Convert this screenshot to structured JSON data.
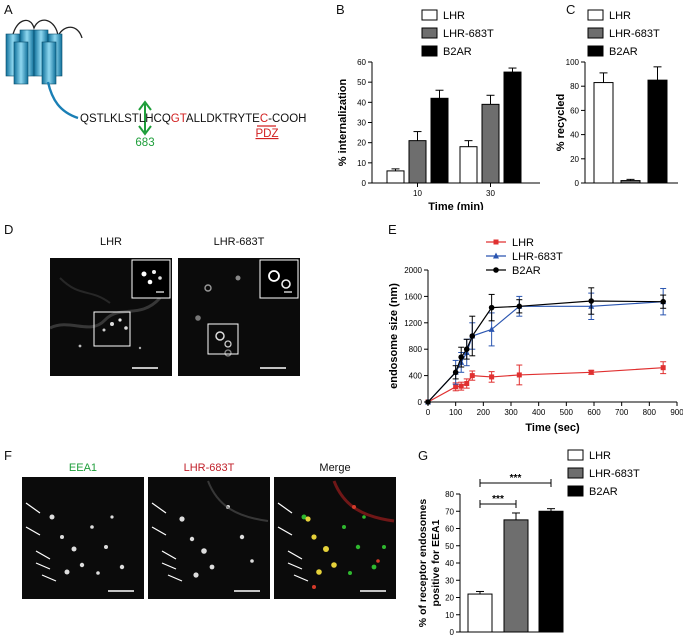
{
  "panels": {
    "A": {
      "letter": "A",
      "sequence": [
        {
          "text": "QSTLKLST",
          "color": "#111111"
        },
        {
          "text": "L",
          "color": "#111111"
        },
        {
          "text": "HCQ",
          "color": "#111111"
        },
        {
          "text": "GT",
          "color": "#d22020"
        },
        {
          "text": "ALLDKTRYT",
          "color": "#111111"
        },
        {
          "text": "E",
          "color": "#111111"
        },
        {
          "text": "C",
          "color": "#d22020"
        },
        {
          "text": "-COOH",
          "color": "#111111"
        }
      ],
      "site_label": "683",
      "pdz_label": "PDZ",
      "accent_green": "#1e9e3a",
      "accent_red": "#d22020"
    },
    "B": {
      "letter": "B"
    },
    "C": {
      "letter": "C"
    },
    "D": {
      "letter": "D",
      "left_title": "LHR",
      "right_title": "LHR-683T"
    },
    "E": {
      "letter": "E"
    },
    "F": {
      "letter": "F",
      "titles": [
        "EEA1",
        "LHR-683T",
        "Merge"
      ],
      "title_colors": [
        "#1e9e3a",
        "#c0202a",
        "#111111"
      ]
    },
    "G": {
      "letter": "G"
    }
  },
  "chart_data": [
    {
      "id": "B",
      "type": "bar",
      "categories": [
        "10",
        "30"
      ],
      "series": [
        {
          "name": "LHR",
          "values": [
            6,
            18
          ],
          "errors": [
            1,
            3
          ],
          "color": "#ffffff"
        },
        {
          "name": "LHR-683T",
          "values": [
            21,
            39
          ],
          "errors": [
            4.5,
            4.5
          ],
          "color": "#6e6e6e"
        },
        {
          "name": "B2AR",
          "values": [
            42,
            55
          ],
          "errors": [
            4,
            2
          ],
          "color": "#000000"
        }
      ],
      "xlabel": "Time (min)",
      "ylabel": "% internalization",
      "ylim": [
        0,
        60
      ],
      "yticks": [
        0,
        10,
        20,
        30,
        40,
        50,
        60
      ],
      "legend": "top"
    },
    {
      "id": "C",
      "type": "bar",
      "categories": [
        "LHR",
        "LHR-683T",
        "B2AR"
      ],
      "values": [
        83,
        2,
        85
      ],
      "errors": [
        8,
        1,
        11
      ],
      "colors": [
        "#ffffff",
        "#6e6e6e",
        "#000000"
      ],
      "series_names": [
        "LHR",
        "LHR-683T",
        "B2AR"
      ],
      "ylabel": "% recycled",
      "ylim": [
        0,
        100
      ],
      "yticks": [
        0,
        20,
        40,
        60,
        80,
        100
      ],
      "legend": "top"
    },
    {
      "id": "E",
      "type": "line",
      "series": [
        {
          "name": "LHR",
          "color": "#e03030",
          "marker": "square",
          "x": [
            0,
            100,
            120,
            140,
            160,
            230,
            330,
            590,
            850
          ],
          "y": [
            0,
            230,
            240,
            280,
            400,
            380,
            410,
            450,
            520
          ],
          "err": [
            0,
            60,
            60,
            70,
            70,
            80,
            150,
            30,
            90
          ]
        },
        {
          "name": "LHR-683T",
          "color": "#2a55b0",
          "marker": "triangle",
          "x": [
            0,
            100,
            120,
            140,
            160,
            230,
            330,
            590,
            850
          ],
          "y": [
            0,
            450,
            600,
            750,
            1000,
            1100,
            1450,
            1450,
            1520
          ],
          "err": [
            0,
            180,
            150,
            200,
            200,
            250,
            150,
            200,
            200
          ]
        },
        {
          "name": "B2AR",
          "color": "#000000",
          "marker": "circle",
          "x": [
            0,
            100,
            120,
            140,
            160,
            230,
            330,
            590,
            850
          ],
          "y": [
            0,
            450,
            680,
            800,
            1000,
            1430,
            1450,
            1530,
            1520
          ],
          "err": [
            0,
            100,
            150,
            150,
            300,
            200,
            100,
            200,
            100
          ]
        }
      ],
      "xlabel": "Time (sec)",
      "ylabel": "endosome size (nm)",
      "xlim": [
        0,
        900
      ],
      "ylim": [
        0,
        2000
      ],
      "xticks": [
        0,
        100,
        200,
        300,
        400,
        500,
        600,
        700,
        800,
        900
      ],
      "yticks": [
        0,
        400,
        800,
        1200,
        1600,
        2000
      ],
      "legend": "top-left"
    },
    {
      "id": "G",
      "type": "bar",
      "categories": [
        "LHR",
        "LHR-683T",
        "B2AR"
      ],
      "values": [
        22,
        65,
        70
      ],
      "errors": [
        1.5,
        4,
        1.5
      ],
      "colors": [
        "#ffffff",
        "#6e6e6e",
        "#000000"
      ],
      "series_names": [
        "LHR",
        "LHR-683T",
        "B2AR"
      ],
      "ylabel": "% of receptor endosomes positive for EEA1",
      "ylabel_lines": [
        "% of receptor endosomes",
        "positive for EEA1"
      ],
      "ylim": [
        0,
        80
      ],
      "yticks": [
        0,
        10,
        20,
        30,
        40,
        50,
        60,
        70,
        80
      ],
      "significance": [
        "***",
        "***"
      ],
      "legend": "top-right"
    }
  ]
}
